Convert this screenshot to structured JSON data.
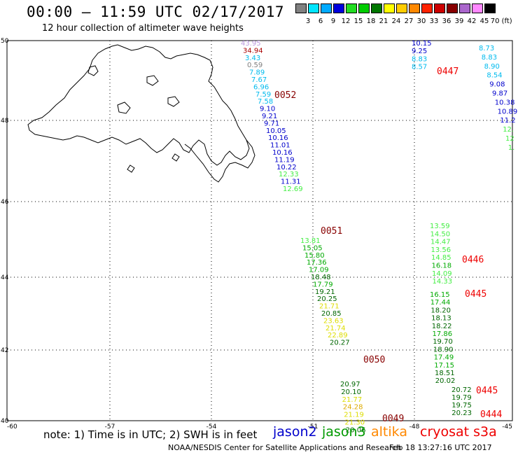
{
  "header": {
    "title": "00:00 – 11:59 UTC 02/17/2017",
    "subtitle": "12 hour collection of altimeter wave heights"
  },
  "scale": {
    "labels": [
      "3",
      "6",
      "9",
      "12",
      "15",
      "18",
      "21",
      "24",
      "27",
      "30",
      "33",
      "36",
      "39",
      "42",
      "45",
      "70 (ft)"
    ],
    "colors": [
      "#808080",
      "#00e5ff",
      "#00aaff",
      "#0000dd",
      "#22dd22",
      "#00cc00",
      "#007700",
      "#ffff00",
      "#ffcc00",
      "#ff8800",
      "#ff2200",
      "#cc0000",
      "#880000",
      "#aa66cc",
      "#ff88ff",
      "#000000"
    ]
  },
  "map": {
    "lon_labels": [
      "-60",
      "-57",
      "-54",
      "-51",
      "-48",
      "-45"
    ],
    "lat_labels": [
      "50",
      "48",
      "46",
      "44",
      "42",
      "40"
    ]
  },
  "tracks": [
    {
      "id": "0052",
      "label": "0052",
      "label_color": "#880000",
      "points": [
        {
          "v": "43.95",
          "c": "#bb99dd"
        },
        {
          "v": "34.94",
          "c": "#aa0000"
        },
        {
          "v": "3.43",
          "c": "#00bbee"
        },
        {
          "v": "0.59",
          "c": "#808080"
        },
        {
          "v": "7.89",
          "c": "#00bbee"
        },
        {
          "v": "7.67",
          "c": "#00bbee"
        },
        {
          "v": "6.96",
          "c": "#00bbee"
        },
        {
          "v": "7.59",
          "c": "#00bbee"
        },
        {
          "v": "7.58",
          "c": "#00bbee"
        },
        {
          "v": "9.10",
          "c": "#0000cc"
        },
        {
          "v": "9.21",
          "c": "#0000cc"
        },
        {
          "v": "9.71",
          "c": "#0000cc"
        },
        {
          "v": "10.05",
          "c": "#0000cc"
        },
        {
          "v": "10.16",
          "c": "#0000cc"
        },
        {
          "v": "11.01",
          "c": "#0000cc"
        },
        {
          "v": "10.16",
          "c": "#0000cc"
        },
        {
          "v": "11.19",
          "c": "#0000cc"
        },
        {
          "v": "10.22",
          "c": "#0000cc"
        },
        {
          "v": "12.33",
          "c": "#44ee44"
        },
        {
          "v": "11.31",
          "c": "#0000cc"
        },
        {
          "v": "12.69",
          "c": "#44ee44"
        }
      ]
    },
    {
      "id": "0051",
      "label": "0051",
      "label_color": "#880000",
      "points": [
        {
          "v": "13.81",
          "c": "#44ee44"
        },
        {
          "v": "15.05",
          "c": "#00aa00"
        },
        {
          "v": "15.80",
          "c": "#00aa00"
        },
        {
          "v": "17.36",
          "c": "#00aa00"
        },
        {
          "v": "17.09",
          "c": "#00aa00"
        },
        {
          "v": "18.48",
          "c": "#006600"
        },
        {
          "v": "17.79",
          "c": "#00aa00"
        },
        {
          "v": "19.21",
          "c": "#006600"
        },
        {
          "v": "20.25",
          "c": "#006600"
        },
        {
          "v": "21.71",
          "c": "#dddd00"
        },
        {
          "v": "20.85",
          "c": "#006600"
        },
        {
          "v": "23.63",
          "c": "#dddd00"
        },
        {
          "v": "21.74",
          "c": "#dddd00"
        },
        {
          "v": "22.89",
          "c": "#dddd00"
        },
        {
          "v": "20.27",
          "c": "#006600"
        }
      ]
    },
    {
      "id": "0050",
      "label": "0050",
      "label_color": "#880000",
      "points": [
        {
          "v": "20.97",
          "c": "#006600"
        },
        {
          "v": "20.10",
          "c": "#006600"
        },
        {
          "v": "21.77",
          "c": "#dddd00"
        },
        {
          "v": "24.28",
          "c": "#ddaa00"
        },
        {
          "v": "21.19",
          "c": "#dddd00"
        },
        {
          "v": "21.30",
          "c": "#dddd00"
        },
        {
          "v": "20.06",
          "c": "#006600"
        }
      ]
    },
    {
      "id": "0049",
      "label": "0049",
      "label_color": "#880000",
      "points": []
    },
    {
      "id": "0447",
      "label": "0447",
      "label_color": "#ee0000",
      "points": [
        {
          "v": "10.15",
          "c": "#0000cc"
        },
        {
          "v": "9.25",
          "c": "#0000cc"
        },
        {
          "v": "8.83",
          "c": "#00bbee"
        },
        {
          "v": "8.57",
          "c": "#00bbee"
        }
      ]
    },
    {
      "id": "east",
      "label": "",
      "label_color": "#000000",
      "points": [
        {
          "v": "8.73",
          "c": "#00bbee"
        },
        {
          "v": "8.83",
          "c": "#00bbee"
        },
        {
          "v": "8.90",
          "c": "#00bbee"
        },
        {
          "v": "8.54",
          "c": "#00bbee"
        },
        {
          "v": "9.08",
          "c": "#0000cc"
        },
        {
          "v": "9.87",
          "c": "#0000cc"
        },
        {
          "v": "10.38",
          "c": "#0000cc"
        },
        {
          "v": "10.89",
          "c": "#0000cc"
        },
        {
          "v": "11.2",
          "c": "#0000cc"
        },
        {
          "v": "12.",
          "c": "#44ee44"
        },
        {
          "v": "12",
          "c": "#44ee44"
        },
        {
          "v": "1.",
          "c": "#44ee44"
        }
      ]
    },
    {
      "id": "0446",
      "label": "0446",
      "label_color": "#ee0000",
      "points": [
        {
          "v": "13.59",
          "c": "#44ee44"
        },
        {
          "v": "14.50",
          "c": "#44ee44"
        },
        {
          "v": "14.47",
          "c": "#44ee44"
        },
        {
          "v": "13.56",
          "c": "#44ee44"
        },
        {
          "v": "14.85",
          "c": "#44ee44"
        },
        {
          "v": "16.18",
          "c": "#00aa00"
        },
        {
          "v": "14.09",
          "c": "#44ee44"
        },
        {
          "v": "14.33",
          "c": "#44ee44"
        }
      ]
    },
    {
      "id": "0445a",
      "label": "0445",
      "label_color": "#ee0000",
      "points": [
        {
          "v": "16.15",
          "c": "#00aa00"
        },
        {
          "v": "17.44",
          "c": "#00aa00"
        },
        {
          "v": "18.20",
          "c": "#006600"
        },
        {
          "v": "18.13",
          "c": "#006600"
        },
        {
          "v": "18.22",
          "c": "#006600"
        },
        {
          "v": "17.86",
          "c": "#00aa00"
        },
        {
          "v": "19.70",
          "c": "#006600"
        },
        {
          "v": "18.90",
          "c": "#006600"
        },
        {
          "v": "17.49",
          "c": "#00aa00"
        },
        {
          "v": "17.15",
          "c": "#00aa00"
        },
        {
          "v": "18.51",
          "c": "#006600"
        },
        {
          "v": "20.02",
          "c": "#006600"
        }
      ]
    },
    {
      "id": "0445b",
      "label": "0445",
      "label_color": "#ee0000",
      "points": [
        {
          "v": "20.72",
          "c": "#006600"
        },
        {
          "v": "19.79",
          "c": "#006600"
        },
        {
          "v": "19.75",
          "c": "#006600"
        },
        {
          "v": "20.23",
          "c": "#006600"
        }
      ]
    },
    {
      "id": "0444",
      "label": "0444",
      "label_color": "#ee0000",
      "points": []
    }
  ],
  "footer": {
    "note": "note: 1) Time is in UTC; 2) SWH is in feet",
    "satellites": [
      {
        "name": "jason2",
        "color": "#0000cc"
      },
      {
        "name": "jason3",
        "color": "#009900"
      },
      {
        "name": "altika",
        "color": "#ff8800"
      },
      {
        "name": "cryosat s3a",
        "color": "#ee0000"
      }
    ],
    "credit": "NOAA/NESDIS Center for Satellite Applications and Research",
    "timestamp": "Feb 18 13:27:16 UTC 2017"
  }
}
